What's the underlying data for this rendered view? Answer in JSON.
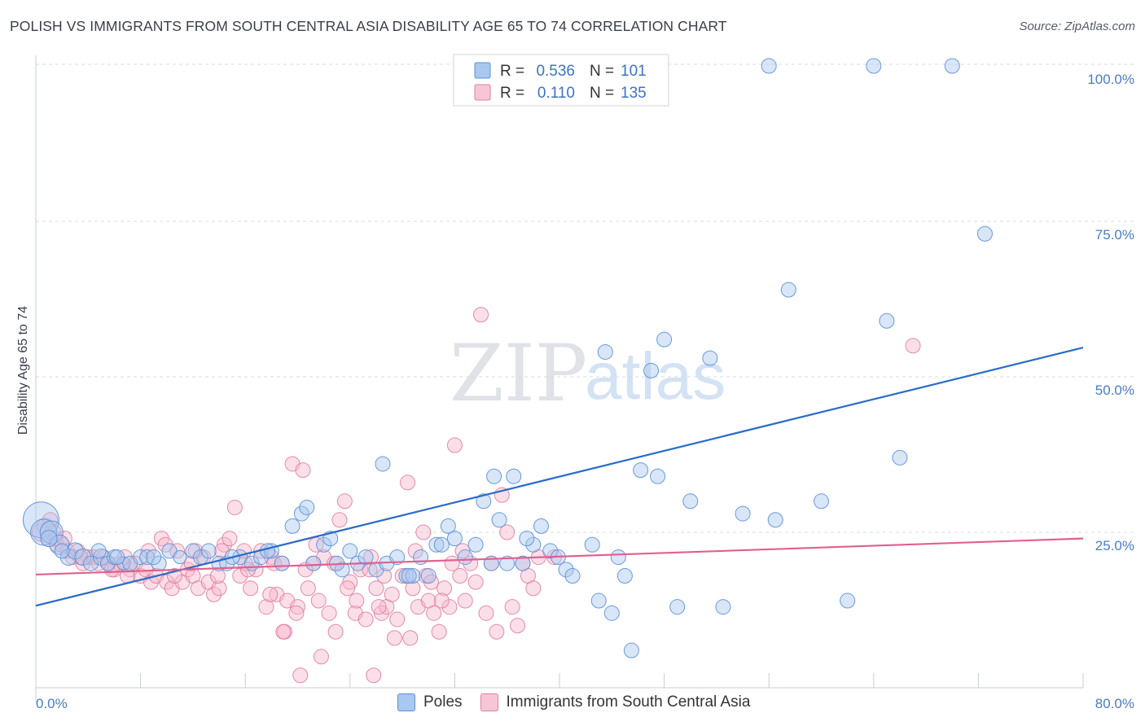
{
  "title": "POLISH VS IMMIGRANTS FROM SOUTH CENTRAL ASIA DISABILITY AGE 65 TO 74 CORRELATION CHART",
  "source": "Source: ZipAtlas.com",
  "watermark": {
    "zip": "ZIP",
    "atlas": "atlas"
  },
  "legend": {
    "r_label": "R =",
    "n_label": "N =",
    "rows": [
      {
        "r": "0.536",
        "n": "101"
      },
      {
        "r": "0.110",
        "n": "135"
      }
    ]
  },
  "colors": {
    "poles_fill": "#a8c8f0",
    "poles_stroke": "#5b8fd6",
    "poles_line": "#2a6bc9",
    "imm_fill": "#f7b8cc",
    "imm_stroke": "#e07ea0",
    "imm_line": "#e0608e",
    "grid": "#d8dbe0",
    "tick_label": "#4a7cc7"
  },
  "chart_data": {
    "type": "scatter",
    "title": "POLISH VS IMMIGRANTS FROM SOUTH CENTRAL ASIA DISABILITY AGE 65 TO 74 CORRELATION CHART",
    "xlabel": "",
    "ylabel": "Disability Age 65 to 74",
    "xlim": [
      0,
      80
    ],
    "ylim": [
      0,
      102
    ],
    "x_tick_labels": [
      "0.0%",
      "80.0%"
    ],
    "y_ticks": [
      25,
      50,
      75,
      100
    ],
    "y_tick_labels": [
      "25.0%",
      "50.0%",
      "75.0%",
      "100.0%"
    ],
    "grid": true,
    "legend_placement": "top-center",
    "series": [
      {
        "name": "Poles",
        "R": 0.536,
        "N": 101,
        "trend": {
          "x": [
            0,
            80
          ],
          "y": [
            13.2,
            54.7
          ]
        },
        "points": [
          [
            0.4,
            27,
            22
          ],
          [
            0.6,
            25,
            16
          ],
          [
            1.2,
            25,
            14
          ],
          [
            1.8,
            23,
            12
          ],
          [
            2.5,
            21,
            10
          ],
          [
            3,
            22,
            10
          ],
          [
            3.6,
            21,
            10
          ],
          [
            4.2,
            20,
            9
          ],
          [
            5,
            21,
            10
          ],
          [
            5.5,
            20,
            9
          ],
          [
            6,
            21,
            9
          ],
          [
            6.7,
            20,
            8
          ],
          [
            7.2,
            20,
            9
          ],
          [
            8,
            21,
            9
          ],
          [
            8.5,
            21,
            9
          ],
          [
            9.4,
            20,
            9
          ],
          [
            10.2,
            22,
            9
          ],
          [
            11,
            21,
            8
          ],
          [
            12,
            22,
            9
          ],
          [
            12.6,
            21,
            9
          ],
          [
            13.2,
            22,
            9
          ],
          [
            14,
            20,
            9
          ],
          [
            14.6,
            20,
            9
          ],
          [
            15.6,
            21,
            9
          ],
          [
            16.5,
            20,
            9
          ],
          [
            17.2,
            21,
            9
          ],
          [
            18,
            22,
            9
          ],
          [
            18.8,
            20,
            9
          ],
          [
            19.6,
            26,
            9
          ],
          [
            20.3,
            28,
            9
          ],
          [
            20.7,
            29,
            9
          ],
          [
            21.2,
            20,
            9
          ],
          [
            22,
            23,
            9
          ],
          [
            22.5,
            24,
            9
          ],
          [
            23.4,
            19,
            9
          ],
          [
            24,
            22,
            9
          ],
          [
            24.6,
            20,
            9
          ],
          [
            25.2,
            21,
            9
          ],
          [
            26,
            19,
            9
          ],
          [
            26.8,
            20,
            9
          ],
          [
            27.6,
            21,
            9
          ],
          [
            28.3,
            18,
            9
          ],
          [
            28.8,
            18,
            9
          ],
          [
            29.4,
            21,
            9
          ],
          [
            30,
            18,
            9
          ],
          [
            30.6,
            23,
            9
          ],
          [
            31,
            23,
            9
          ],
          [
            31.5,
            26,
            9
          ],
          [
            32,
            24,
            9
          ],
          [
            32.8,
            21,
            9
          ],
          [
            33.6,
            23,
            9
          ],
          [
            34.2,
            30,
            9
          ],
          [
            34.8,
            20,
            9
          ],
          [
            35.4,
            27,
            9
          ],
          [
            36,
            20,
            9
          ],
          [
            36.5,
            34,
            9
          ],
          [
            37.2,
            20,
            9
          ],
          [
            38,
            23,
            9
          ],
          [
            38.6,
            26,
            9
          ],
          [
            39.3,
            22,
            9
          ],
          [
            39.9,
            21,
            9
          ],
          [
            40.5,
            19,
            9
          ],
          [
            41,
            18,
            9
          ],
          [
            43,
            14,
            9
          ],
          [
            44,
            12,
            9
          ],
          [
            45,
            18,
            9
          ],
          [
            45.5,
            6,
            9
          ],
          [
            46.2,
            35,
            9
          ],
          [
            47.5,
            34,
            9
          ],
          [
            48,
            56,
            9
          ],
          [
            49,
            13,
            9
          ],
          [
            50,
            30,
            9
          ],
          [
            51.5,
            53,
            9
          ],
          [
            52.5,
            13,
            9
          ],
          [
            54,
            28,
            9
          ],
          [
            56,
            100,
            9
          ],
          [
            56.5,
            27,
            9
          ],
          [
            57.5,
            64,
            9
          ],
          [
            60,
            30,
            9
          ],
          [
            62,
            14,
            9
          ],
          [
            64,
            100,
            9
          ],
          [
            65,
            59,
            9
          ],
          [
            66,
            37,
            9
          ],
          [
            70,
            100,
            9
          ],
          [
            72.5,
            73,
            9
          ],
          [
            43.5,
            54,
            9
          ],
          [
            47,
            51,
            9
          ],
          [
            44.5,
            21,
            9
          ],
          [
            42.5,
            23,
            9
          ],
          [
            26.5,
            36,
            9
          ],
          [
            28.5,
            18,
            9
          ],
          [
            35,
            34,
            9
          ],
          [
            37.5,
            24,
            9
          ],
          [
            1,
            24,
            10
          ],
          [
            2,
            22,
            9
          ],
          [
            4.8,
            22,
            9
          ],
          [
            6.2,
            21,
            9
          ],
          [
            9,
            21,
            9
          ],
          [
            15,
            21,
            9
          ],
          [
            17.7,
            22,
            9
          ],
          [
            23,
            20,
            9
          ]
        ]
      },
      {
        "name": "Immigrants from South Central Asia",
        "R": 0.11,
        "N": 135,
        "trend": {
          "x": [
            0,
            80
          ],
          "y": [
            18.2,
            24.0
          ]
        },
        "points": [
          [
            0.4,
            25,
            11
          ],
          [
            0.7,
            26,
            10
          ],
          [
            1,
            24,
            10
          ],
          [
            1.3,
            25,
            10
          ],
          [
            1.6,
            23,
            9
          ],
          [
            2,
            23,
            9
          ],
          [
            2.4,
            22,
            9
          ],
          [
            2.8,
            21,
            9
          ],
          [
            3.2,
            22,
            9
          ],
          [
            3.6,
            20,
            9
          ],
          [
            4,
            21,
            9
          ],
          [
            4.4,
            21,
            9
          ],
          [
            4.8,
            20,
            9
          ],
          [
            5.2,
            21,
            9
          ],
          [
            5.6,
            20,
            9
          ],
          [
            6,
            19,
            9
          ],
          [
            6.4,
            20,
            9
          ],
          [
            6.8,
            21,
            9
          ],
          [
            7.2,
            19,
            9
          ],
          [
            7.6,
            20,
            9
          ],
          [
            8,
            18,
            9
          ],
          [
            8.4,
            19,
            9
          ],
          [
            8.8,
            17,
            9
          ],
          [
            9.2,
            18,
            9
          ],
          [
            9.6,
            24,
            9
          ],
          [
            10,
            17,
            9
          ],
          [
            10.4,
            16,
            9
          ],
          [
            10.8,
            22,
            9
          ],
          [
            11.2,
            17,
            9
          ],
          [
            11.6,
            19,
            9
          ],
          [
            12,
            18,
            9
          ],
          [
            12.4,
            16,
            9
          ],
          [
            12.8,
            21,
            9
          ],
          [
            13.2,
            17,
            9
          ],
          [
            13.6,
            15,
            9
          ],
          [
            14,
            16,
            9
          ],
          [
            14.4,
            23,
            9
          ],
          [
            14.8,
            24,
            9
          ],
          [
            15.2,
            29,
            9
          ],
          [
            15.6,
            18,
            9
          ],
          [
            16,
            20,
            9
          ],
          [
            16.4,
            16,
            9
          ],
          [
            16.8,
            19,
            9
          ],
          [
            17.2,
            22,
            9
          ],
          [
            17.6,
            13,
            9
          ],
          [
            18,
            21,
            9
          ],
          [
            18.4,
            15,
            9
          ],
          [
            18.8,
            20,
            9
          ],
          [
            19.2,
            14,
            9
          ],
          [
            19.6,
            36,
            9
          ],
          [
            20,
            13,
            9
          ],
          [
            20.4,
            35,
            9
          ],
          [
            20.8,
            16,
            9
          ],
          [
            21.2,
            20,
            9
          ],
          [
            21.6,
            14,
            9
          ],
          [
            22,
            21,
            9
          ],
          [
            22.4,
            12,
            9
          ],
          [
            22.8,
            20,
            9
          ],
          [
            23.2,
            27,
            9
          ],
          [
            23.6,
            30,
            9
          ],
          [
            24,
            17,
            9
          ],
          [
            24.4,
            12,
            9
          ],
          [
            24.8,
            19,
            9
          ],
          [
            25.2,
            11,
            9
          ],
          [
            25.6,
            21,
            9
          ],
          [
            26,
            16,
            9
          ],
          [
            26.4,
            12,
            9
          ],
          [
            26.8,
            13,
            9
          ],
          [
            27.2,
            15,
            9
          ],
          [
            27.6,
            11,
            9
          ],
          [
            28,
            18,
            9
          ],
          [
            28.4,
            33,
            9
          ],
          [
            28.8,
            16,
            9
          ],
          [
            29.2,
            13,
            9
          ],
          [
            29.6,
            25,
            9
          ],
          [
            30,
            14,
            9
          ],
          [
            30.4,
            12,
            9
          ],
          [
            30.8,
            9,
            9
          ],
          [
            31.2,
            16,
            9
          ],
          [
            31.6,
            13,
            9
          ],
          [
            32,
            39,
            9
          ],
          [
            32.4,
            18,
            9
          ],
          [
            32.8,
            14,
            9
          ],
          [
            33.2,
            20,
            9
          ],
          [
            34,
            60,
            9
          ],
          [
            34.4,
            12,
            9
          ],
          [
            34.8,
            20,
            9
          ],
          [
            35.2,
            9,
            9
          ],
          [
            35.6,
            31,
            9
          ],
          [
            36,
            25,
            9
          ],
          [
            36.4,
            13,
            9
          ],
          [
            36.8,
            10,
            9
          ],
          [
            37.2,
            20,
            9
          ],
          [
            37.6,
            18,
            9
          ],
          [
            38,
            16,
            9
          ],
          [
            38.4,
            21,
            9
          ],
          [
            39.6,
            21,
            9
          ],
          [
            67,
            55,
            9
          ],
          [
            20.2,
            2,
            9
          ],
          [
            21.8,
            5,
            9
          ],
          [
            25.8,
            2,
            9
          ],
          [
            28.6,
            8,
            9
          ],
          [
            19,
            9,
            9
          ],
          [
            23.8,
            16,
            9
          ],
          [
            26.2,
            13,
            9
          ],
          [
            29.8,
            18,
            9
          ],
          [
            30.2,
            17,
            9
          ],
          [
            31.8,
            20,
            9
          ],
          [
            33.6,
            17,
            9
          ],
          [
            1.1,
            27,
            9
          ],
          [
            1.5,
            24,
            9
          ],
          [
            2.2,
            24,
            9
          ],
          [
            3.4,
            21,
            9
          ],
          [
            5.8,
            19,
            9
          ],
          [
            7,
            18,
            9
          ],
          [
            8.6,
            22,
            9
          ],
          [
            10.6,
            18,
            9
          ],
          [
            11.9,
            20,
            9
          ],
          [
            13.9,
            18,
            9
          ],
          [
            15.9,
            22,
            9
          ],
          [
            17.9,
            15,
            9
          ],
          [
            18.9,
            9,
            9
          ],
          [
            19.9,
            12,
            9
          ],
          [
            21.4,
            23,
            9
          ],
          [
            22.9,
            9,
            9
          ],
          [
            24.5,
            14,
            9
          ],
          [
            25.5,
            19,
            9
          ],
          [
            26.6,
            18,
            9
          ],
          [
            27.4,
            8,
            9
          ],
          [
            29,
            22,
            9
          ],
          [
            31,
            14,
            9
          ],
          [
            32.6,
            22,
            9
          ],
          [
            9.9,
            23,
            9
          ],
          [
            12.2,
            22,
            9
          ],
          [
            14.2,
            22,
            9
          ],
          [
            16.2,
            19,
            9
          ],
          [
            18.2,
            20,
            9
          ],
          [
            20.6,
            19,
            9
          ]
        ]
      }
    ]
  },
  "bottom_legend": [
    {
      "label": "Poles"
    },
    {
      "label": "Immigrants from South Central Asia"
    }
  ]
}
